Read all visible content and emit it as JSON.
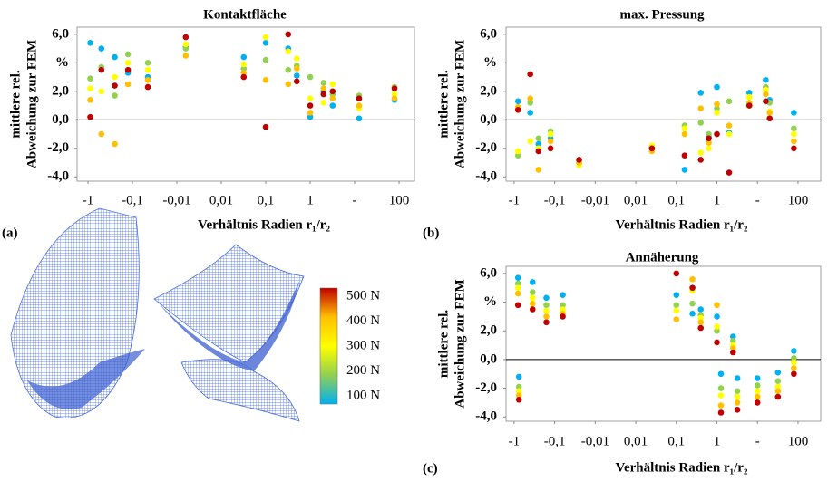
{
  "chart_data": [
    {
      "type": "scatter",
      "title": "Kontaktfläche",
      "panel": "(a)",
      "xlabel": "Verhältnis Radien r₁/r₂",
      "ylabel": [
        "mittlere rel.",
        "Abweichung zur FEM"
      ],
      "xscale": "symlog",
      "linthresh": 0.01,
      "xlim": [
        -1.76,
        222
      ],
      "ylim": [
        -4.3,
        6.5
      ],
      "zeroline": true,
      "grid": false,
      "xticks": [
        -1,
        {
          "value": -0.1,
          "label": "-0,1"
        },
        {
          "value": -0.01,
          "label": "-0,01"
        },
        {
          "value": 0.01,
          "label": "0,01"
        },
        {
          "value": 0.1,
          "label": "0,1"
        },
        1,
        {
          "value": 10,
          "label": "-"
        },
        100
      ],
      "yticks": [
        {
          "value": 6,
          "label": "6,0"
        },
        {
          "value": 4,
          "label": "%"
        },
        {
          "value": 2,
          "label": "2,0"
        },
        {
          "value": 0,
          "label": "0,0"
        },
        {
          "value": -2,
          "label": "-2,0"
        },
        {
          "value": -4,
          "label": "-4,0"
        }
      ],
      "x": [
        -0.89,
        -0.5,
        -0.25,
        -0.126,
        -0.045,
        -0.006,
        0.032,
        0.1,
        0.32,
        1,
        3.2,
        12.6,
        79,
        0.5,
        2
      ],
      "series": [
        {
          "values": [
            0.2,
            3.5,
            2.4,
            3.5,
            2.3,
            5.8,
            3.0,
            -0.5,
            6.0,
            1.0,
            2.0,
            1.5,
            2.2,
            2.7,
            1.8
          ]
        },
        {
          "values": [
            1.4,
            -1.0,
            -1.7,
            2.5,
            2.8,
            4.5,
            3.3,
            2.8,
            2.5,
            0.5,
            1.5,
            1.0,
            1.5,
            3.6,
            2.2
          ]
        },
        {
          "values": [
            2.2,
            2.0,
            3.0,
            4.0,
            3.5,
            5.3,
            3.9,
            5.8,
            4.8,
            1.5,
            2.5,
            0.8,
            1.8,
            4.3,
            1.2
          ]
        },
        {
          "values": [
            2.9,
            3.7,
            1.7,
            4.6,
            4.0,
            5.0,
            3.6,
            4.2,
            3.5,
            3.0,
            1.8,
            1.7,
            2.3,
            3.8,
            2.6
          ]
        },
        {
          "values": [
            5.4,
            5.0,
            4.4,
            3.3,
            3.0,
            5.1,
            4.4,
            5.4,
            5.0,
            0.2,
            1.0,
            0.1,
            1.4,
            3.1,
            2.0
          ]
        }
      ]
    },
    {
      "type": "scatter",
      "title": "max. Pressung",
      "panel": "(b)",
      "xlabel": "Verhältnis Radien r₁/r₂",
      "ylabel": [
        "mittlere rel.",
        "Abweichung zur FEM"
      ],
      "xscale": "symlog",
      "linthresh": 0.01,
      "xlim": [
        -1.58,
        363
      ],
      "ylim": [
        -4.3,
        6.5
      ],
      "zeroline": true,
      "grid": false,
      "xticks": [
        -1,
        {
          "value": -0.1,
          "label": "-0,1"
        },
        {
          "value": -0.01,
          "label": "-0,01"
        },
        {
          "value": 0.01,
          "label": "0,01"
        },
        {
          "value": 0.1,
          "label": "0,1"
        },
        1,
        {
          "value": 10,
          "label": "-"
        },
        100
      ],
      "yticks": [
        {
          "value": 6,
          "label": "6,0"
        },
        {
          "value": 4,
          "label": "%"
        },
        {
          "value": 2,
          "label": "2,0"
        },
        {
          "value": 0,
          "label": "0,0"
        },
        {
          "value": -2,
          "label": "-2,0"
        },
        {
          "value": -4,
          "label": "-4,0"
        }
      ],
      "x": [
        -0.8,
        -0.4,
        -0.25,
        -0.126,
        -0.025,
        0.025,
        0.16,
        0.4,
        1,
        2,
        6.3,
        16,
        20,
        79,
        0.63
      ],
      "series": [
        {
          "values": [
            0.7,
            3.2,
            -2.2,
            -2.0,
            -2.8,
            -2.0,
            -2.5,
            -2.8,
            -1.0,
            -3.7,
            1.0,
            1.3,
            0.1,
            -2.0,
            -1.3
          ]
        },
        {
          "values": [
            0.9,
            1.5,
            -3.5,
            -1.5,
            -3.0,
            -2.2,
            -1.0,
            0.8,
            1.1,
            -0.4,
            1.2,
            1.8,
            0.5,
            -1.5,
            -1.6
          ]
        },
        {
          "values": [
            -2.2,
            -1.5,
            -2.0,
            -1.0,
            -3.2,
            -1.8,
            -0.6,
            -2.3,
            0.5,
            -1.0,
            1.6,
            2.1,
            0.6,
            -1.0,
            -2.0
          ]
        },
        {
          "values": [
            -2.5,
            1.2,
            -1.3,
            -0.8,
            -2.9,
            -2.0,
            -0.4,
            -0.2,
            0.8,
            1.3,
            1.0,
            2.3,
            1.2,
            -0.6,
            -1.0
          ]
        },
        {
          "values": [
            1.3,
            0.5,
            -1.7,
            -1.3,
            -3.0,
            -1.9,
            -3.5,
            1.9,
            2.3,
            -0.9,
            1.9,
            2.8,
            1.4,
            0.5,
            -1.2
          ]
        }
      ]
    },
    {
      "type": "scatter",
      "title": "Annäherung",
      "panel": "(c)",
      "xlabel": "Verhältnis Radien r₁/r₂",
      "ylabel": [
        "mittlere rel.",
        "Abweichung zur FEM"
      ],
      "xscale": "symlog",
      "linthresh": 0.01,
      "xlim": [
        -1.58,
        363
      ],
      "ylim": [
        -4.3,
        6.5
      ],
      "zeroline": true,
      "grid": false,
      "xticks": [
        -1,
        {
          "value": -0.1,
          "label": "-0,1"
        },
        {
          "value": -0.01,
          "label": "-0,01"
        },
        {
          "value": 0.01,
          "label": "0,01"
        },
        {
          "value": 0.1,
          "label": "0,1"
        },
        1,
        {
          "value": 10,
          "label": "-"
        },
        100
      ],
      "yticks": [
        {
          "value": 6,
          "label": "6,0"
        },
        {
          "value": 4,
          "label": "%"
        },
        {
          "value": 2,
          "label": "2,0"
        },
        {
          "value": 0,
          "label": "0,0"
        },
        {
          "value": -2,
          "label": "-2,0"
        },
        {
          "value": -4,
          "label": "-4,0"
        }
      ],
      "x": [
        -0.8,
        -0.76,
        -0.35,
        -0.16,
        -0.063,
        0.1,
        0.25,
        0.4,
        1,
        1.26,
        2.5,
        3.2,
        10,
        32,
        79
      ],
      "series": [
        {
          "values": [
            3.8,
            -2.8,
            3.5,
            2.6,
            3.0,
            6.0,
            5.0,
            2.2,
            1.2,
            -3.7,
            0.5,
            -3.5,
            -3.0,
            -2.6,
            -1.0
          ]
        },
        {
          "values": [
            4.6,
            -2.5,
            3.9,
            3.0,
            3.2,
            2.8,
            5.6,
            2.6,
            3.8,
            -3.2,
            0.8,
            -3.0,
            -2.6,
            -2.2,
            -0.6
          ]
        },
        {
          "values": [
            5.0,
            -2.2,
            4.3,
            3.4,
            3.5,
            3.4,
            4.8,
            2.9,
            2.3,
            -2.5,
            1.0,
            -2.6,
            -2.2,
            -1.9,
            -0.2
          ]
        },
        {
          "values": [
            5.3,
            -1.9,
            4.7,
            3.8,
            3.8,
            3.8,
            3.9,
            3.1,
            2.0,
            -2.0,
            1.3,
            -2.2,
            -1.8,
            -1.5,
            0.1
          ]
        },
        {
          "values": [
            5.7,
            -1.2,
            5.4,
            4.3,
            4.5,
            4.5,
            3.2,
            3.5,
            3.0,
            -1.0,
            1.6,
            -1.3,
            -1.3,
            -0.9,
            0.6
          ]
        }
      ]
    }
  ],
  "legend": [
    {
      "label": "500 N",
      "color": "#c00000"
    },
    {
      "label": "400 N",
      "color": "#ffc000"
    },
    {
      "label": "300 N",
      "color": "#ffff00"
    },
    {
      "label": "200 N",
      "color": "#92d050"
    },
    {
      "label": "100 N",
      "color": "#00b0f0"
    }
  ]
}
